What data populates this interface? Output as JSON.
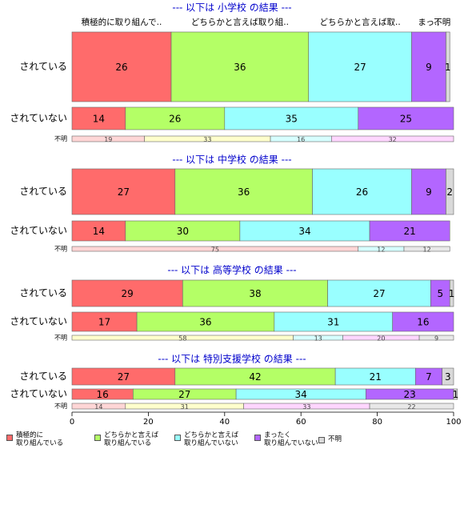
{
  "column_headers": [
    "積極的に取り組んで..",
    "どちらかと言えば取り組..",
    "どちらかと言えば取..",
    "まっ..",
    "不明"
  ],
  "legend": [
    {
      "name": "積極的に\n取り組んでいる",
      "color": "#ff6b6b",
      "light_color": "#ffd6d6"
    },
    {
      "name": "どちらかと言えば\n取り組んでいる",
      "color": "#b4ff66",
      "light_color": "#ffffcc"
    },
    {
      "name": "どちらかと言えば\n取り組んでいない",
      "color": "#99ffff",
      "light_color": "#d6ffff"
    },
    {
      "name": "まったく\n取り組んでいない",
      "color": "#b366ff",
      "light_color": "#ffd6ff"
    },
    {
      "name": "不明",
      "color": "#d9d9d9",
      "light_color": "#e8e8e8"
    }
  ],
  "xaxis": {
    "xlim": [
      0,
      100
    ],
    "xticks": [
      0,
      20,
      40,
      60,
      80,
      100
    ]
  },
  "chart_data": [
    {
      "type": "bar",
      "title": "--- 以下は 小学校 の結果 ---",
      "categories": [
        "されている",
        "されていない",
        "不明"
      ],
      "series": [
        {
          "values": [
            26,
            14,
            19
          ]
        },
        {
          "values": [
            36,
            26,
            33
          ]
        },
        {
          "values": [
            27,
            35,
            16
          ]
        },
        {
          "values": [
            9,
            25,
            32
          ]
        },
        {
          "values": [
            1,
            null,
            null
          ]
        }
      ]
    },
    {
      "type": "bar",
      "title": "--- 以下は 中学校 の結果 ---",
      "categories": [
        "されている",
        "されていない",
        "不明"
      ],
      "series": [
        {
          "values": [
            27,
            14,
            75
          ]
        },
        {
          "values": [
            36,
            30,
            null
          ]
        },
        {
          "values": [
            26,
            34,
            12
          ]
        },
        {
          "values": [
            9,
            21,
            null
          ]
        },
        {
          "values": [
            2,
            null,
            12
          ]
        }
      ]
    },
    {
      "type": "bar",
      "title": "--- 以下は 高等学校 の結果 ---",
      "categories": [
        "されている",
        "されていない",
        "不明"
      ],
      "series": [
        {
          "values": [
            29,
            17,
            null
          ]
        },
        {
          "values": [
            38,
            36,
            58
          ]
        },
        {
          "values": [
            27,
            31,
            13
          ]
        },
        {
          "values": [
            5,
            16,
            20
          ]
        },
        {
          "values": [
            1,
            null,
            9
          ]
        }
      ]
    },
    {
      "type": "bar",
      "title": "--- 以下は 特別支援学校 の結果 ---",
      "categories": [
        "されている",
        "されていない",
        "不明"
      ],
      "series": [
        {
          "values": [
            27,
            16,
            14
          ]
        },
        {
          "values": [
            42,
            27,
            31
          ]
        },
        {
          "values": [
            21,
            34,
            null
          ]
        },
        {
          "values": [
            7,
            23,
            33
          ]
        },
        {
          "values": [
            3,
            1,
            22
          ]
        }
      ]
    }
  ]
}
